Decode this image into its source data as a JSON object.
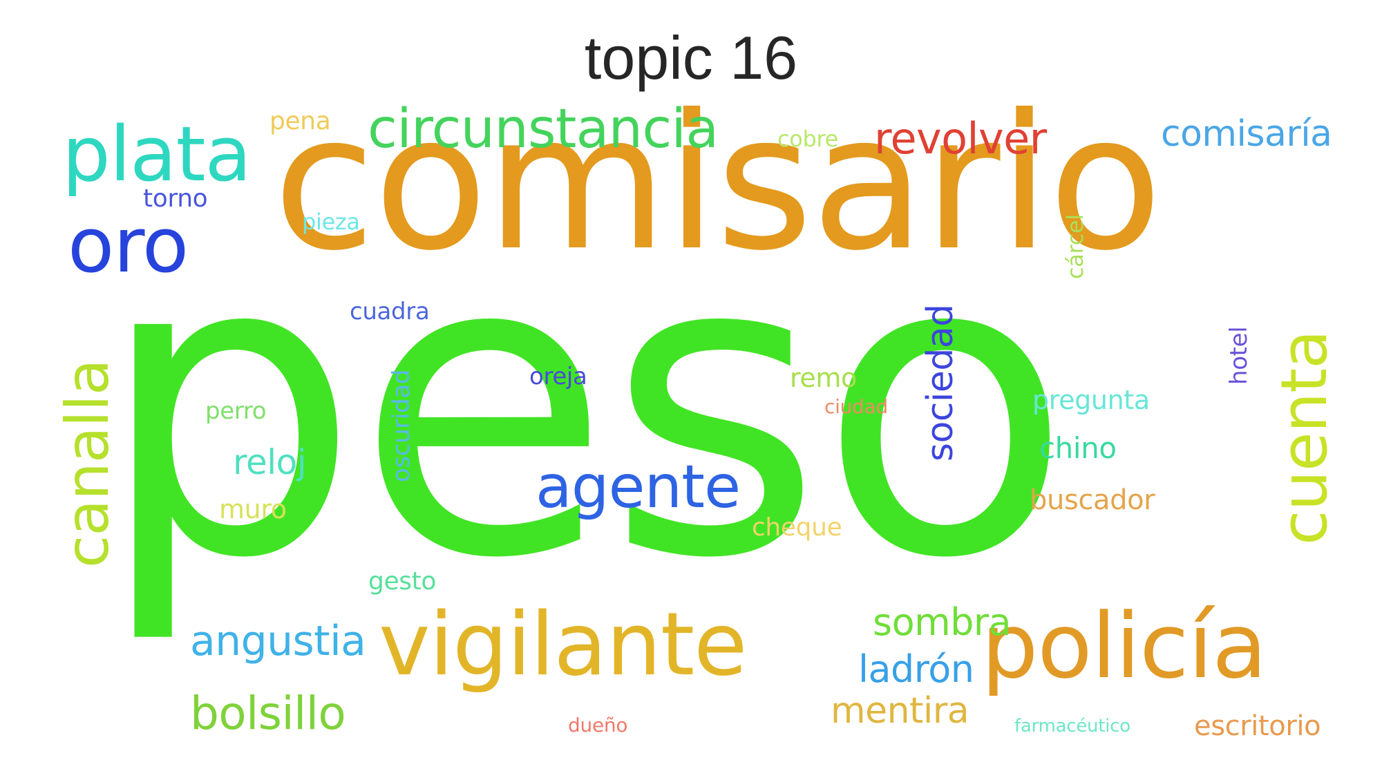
{
  "title": "topic 16",
  "words": [
    {
      "text": "peso",
      "color": "#41e424"
    },
    {
      "text": "comisario",
      "color": "#e39a1e"
    },
    {
      "text": "policía",
      "color": "#e19a26"
    },
    {
      "text": "vigilante",
      "color": "#e2b529"
    },
    {
      "text": "plata",
      "color": "#2ed7c0"
    },
    {
      "text": "oro",
      "color": "#2643dc"
    },
    {
      "text": "circunstancia",
      "color": "#44d35c"
    },
    {
      "text": "cuenta",
      "color": "#c8e226"
    },
    {
      "text": "canalla",
      "color": "#b5e02c"
    },
    {
      "text": "agente",
      "color": "#2e63e3"
    },
    {
      "text": "revolver",
      "color": "#e04133"
    },
    {
      "text": "comisaría",
      "color": "#4aa6e6"
    },
    {
      "text": "sociedad",
      "color": "#3c45dd"
    },
    {
      "text": "bolsillo",
      "color": "#7fd23a"
    },
    {
      "text": "angustia",
      "color": "#3fb2e8"
    },
    {
      "text": "sombra",
      "color": "#6fde38"
    },
    {
      "text": "ladrón",
      "color": "#38a0e8"
    },
    {
      "text": "mentira",
      "color": "#e0b640"
    },
    {
      "text": "escritorio",
      "color": "#e89a4e"
    },
    {
      "text": "reloj",
      "color": "#4fe0c0"
    },
    {
      "text": "buscador",
      "color": "#e3a54a"
    },
    {
      "text": "chino",
      "color": "#38d9a0"
    },
    {
      "text": "pregunta",
      "color": "#67e6d6"
    },
    {
      "text": "oscuridad",
      "color": "#5bb7ee"
    },
    {
      "text": "cuadra",
      "color": "#4a66de"
    },
    {
      "text": "oreja",
      "color": "#4a4ad8"
    },
    {
      "text": "remo",
      "color": "#a6e04a"
    },
    {
      "text": "cheque",
      "color": "#f1d36a"
    },
    {
      "text": "gesto",
      "color": "#56e09a"
    },
    {
      "text": "muro",
      "color": "#d7e15a"
    },
    {
      "text": "perro",
      "color": "#7fe06a"
    },
    {
      "text": "hotel",
      "color": "#6a52d8"
    },
    {
      "text": "cárcel",
      "color": "#a9e05a"
    },
    {
      "text": "torno",
      "color": "#4a55da"
    },
    {
      "text": "pena",
      "color": "#eecb58"
    },
    {
      "text": "cobre",
      "color": "#b9e86a"
    },
    {
      "text": "pieza",
      "color": "#6ee6e8"
    },
    {
      "text": "ciudad",
      "color": "#ef8a66"
    },
    {
      "text": "dueño",
      "color": "#ef7a6a"
    },
    {
      "text": "farmacéutico",
      "color": "#6de6c8"
    }
  ]
}
